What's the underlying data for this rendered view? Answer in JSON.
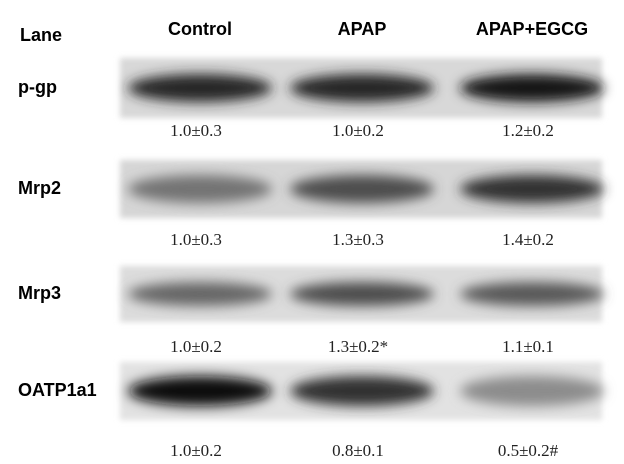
{
  "header": {
    "lane": "Lane",
    "lanes": [
      "Control",
      "APAP",
      "APAP+EGCG"
    ]
  },
  "rows": [
    {
      "label": "p-gp",
      "values": [
        "1.0±0.3",
        "1.0±0.2",
        "1.2±0.2"
      ]
    },
    {
      "label": "Mrp2",
      "values": [
        "1.0±0.3",
        "1.3±0.3",
        "1.4±0.2"
      ]
    },
    {
      "label": "Mrp3",
      "values": [
        "1.0±0.2",
        "1.3±0.2*",
        "1.1±0.1"
      ]
    },
    {
      "label": "OATP1a1",
      "values": [
        "1.0±0.2",
        "0.8±0.1",
        "0.5±0.2#"
      ]
    }
  ]
}
